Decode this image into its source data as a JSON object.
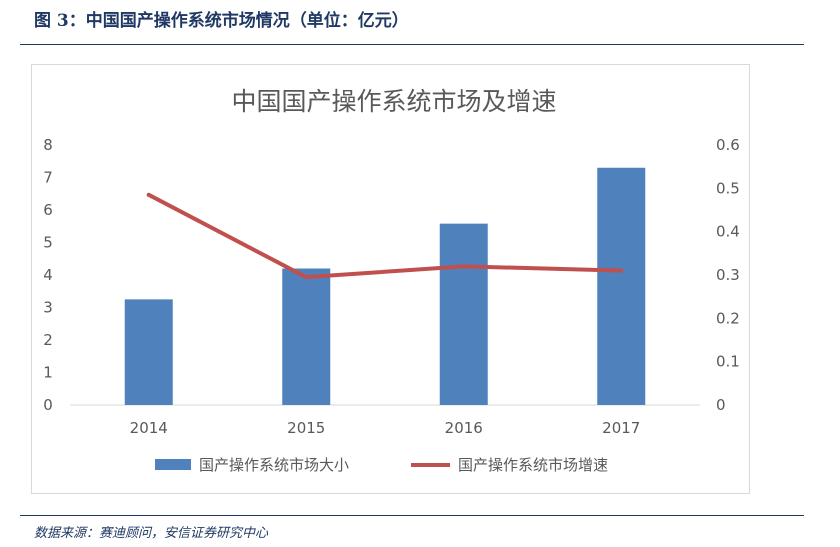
{
  "figure": {
    "caption": "图 3：中国国产操作系统市场情况（单位：亿元）",
    "source": "数据来源：赛迪顾问，安信证券研究中心"
  },
  "chart_data": {
    "type": "bar+line",
    "title": "中国国产操作系统市场及增速",
    "categories": [
      "2014",
      "2015",
      "2016",
      "2017"
    ],
    "series": [
      {
        "name": "国产操作系统市场大小",
        "kind": "bar",
        "axis": "left",
        "color": "#4f81bd",
        "values": [
          3.25,
          4.2,
          5.58,
          7.3
        ]
      },
      {
        "name": "国产操作系统市场增速",
        "kind": "line",
        "axis": "right",
        "color": "#c0504d",
        "values": [
          0.485,
          0.295,
          0.32,
          0.31
        ]
      }
    ],
    "y_left": {
      "range": [
        0,
        8
      ],
      "ticks": [
        "0",
        "1",
        "2",
        "3",
        "4",
        "5",
        "6",
        "7",
        "8"
      ]
    },
    "y_right": {
      "range": [
        0,
        0.6
      ],
      "ticks": [
        "0",
        "0.1",
        "0.2",
        "0.3",
        "0.4",
        "0.5",
        "0.6"
      ]
    },
    "grid": false,
    "legend": "bottom"
  }
}
